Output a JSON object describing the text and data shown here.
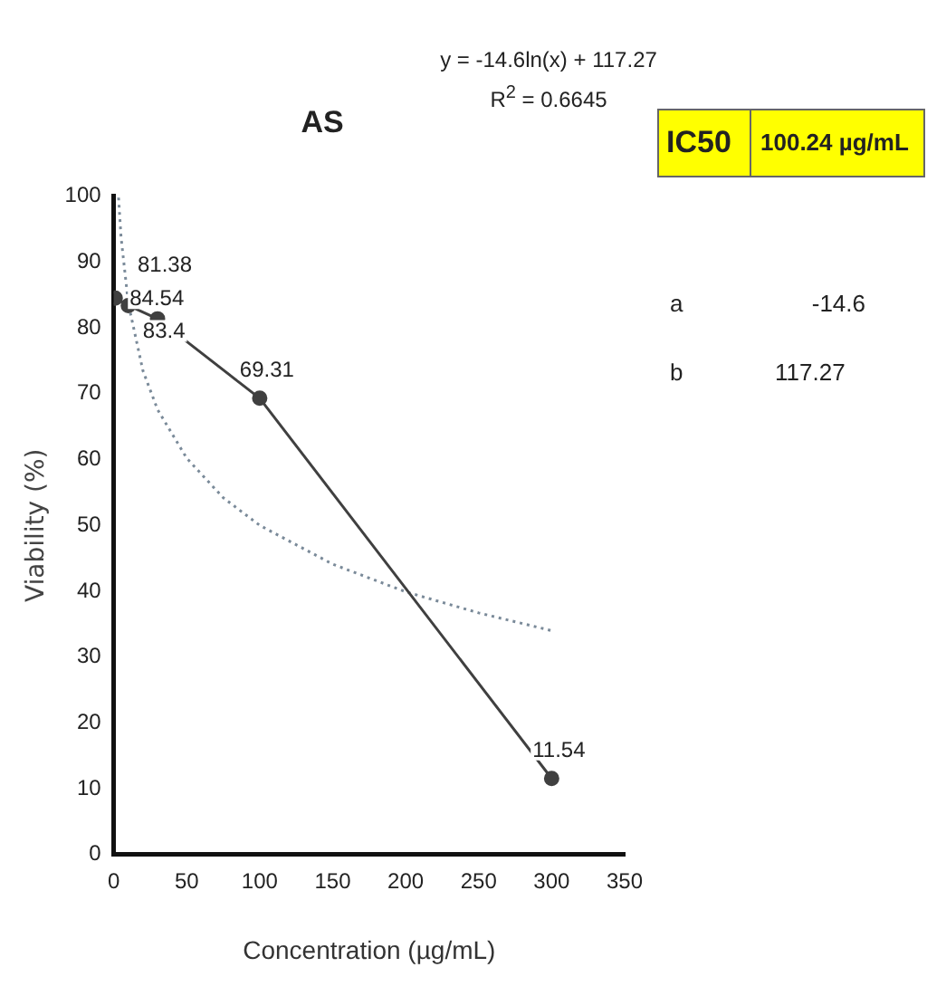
{
  "chart_data": {
    "type": "line",
    "title": "AS",
    "xlabel": "Concentration (µg/mL)",
    "ylabel": "Viability (%)",
    "xlim": [
      0,
      350
    ],
    "xticks": [
      0,
      50,
      100,
      150,
      200,
      250,
      300,
      350
    ],
    "ylim": [
      0,
      100
    ],
    "yticks": [
      0,
      10,
      20,
      30,
      40,
      50,
      60,
      70,
      80,
      90,
      100
    ],
    "legend": false,
    "grid": false,
    "series": [
      {
        "color": "#404040",
        "x": [
          1,
          10,
          30,
          100,
          300
        ],
        "values": [
          84.54,
          83.4,
          81.38,
          69.31,
          11.54
        ],
        "marker": "circle",
        "line_style": "solid",
        "data_labels": true
      },
      {
        "color": "#7a8a99",
        "x": [
          3.3,
          5,
          10,
          20,
          30,
          50,
          75,
          100,
          150,
          200,
          250,
          300
        ],
        "values": [
          99.8,
          93.8,
          83.7,
          73.5,
          67.6,
          60.2,
          54.2,
          50,
          44.1,
          39.9,
          36.7,
          34
        ],
        "marker": "none",
        "line_style": "dotted"
      }
    ],
    "annotations": [
      "y = -14.6ln(x) + 117.27",
      "R$^{2}$ = 0.6645",
      "IC50",
      "100.24 µg/mL",
      "a",
      "-14.6",
      "b",
      "117.27"
    ]
  }
}
